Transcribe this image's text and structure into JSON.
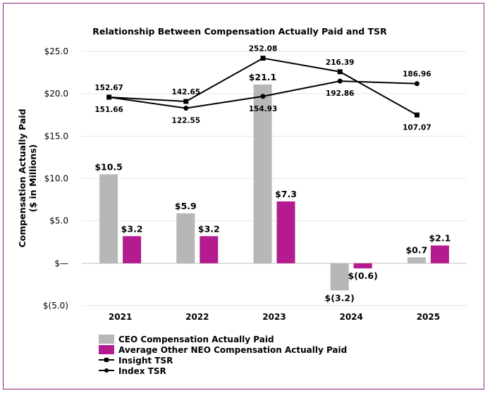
{
  "chart_data": {
    "type": "bar",
    "title": "Relationship Between Compensation Actually Paid and TSR",
    "ylabel_line1": "Compensation Actually Paid",
    "ylabel_line2": "($ in Millions)",
    "ylim": [
      -5,
      25
    ],
    "yticks": [
      {
        "value": 25,
        "label": "$25.0"
      },
      {
        "value": 20,
        "label": "$20.0"
      },
      {
        "value": 15,
        "label": "$15.0"
      },
      {
        "value": 10,
        "label": "$10.0"
      },
      {
        "value": 5,
        "label": "$5.0"
      },
      {
        "value": 0,
        "label": "$—"
      },
      {
        "value": -5,
        "label": "$(5.0)"
      }
    ],
    "categories": [
      "2021",
      "2022",
      "2023",
      "2024",
      "2025"
    ],
    "grid": true,
    "legend_position": "bottom-left",
    "bar_series": [
      {
        "name": "CEO Compensation Actually Paid",
        "color": "#b7b7b7",
        "values": [
          10.5,
          5.9,
          21.1,
          -3.2,
          0.7
        ],
        "labels": [
          "$10.5",
          "$5.9",
          "$21.1",
          "$(3.2)",
          "$0.7"
        ]
      },
      {
        "name": "Average Other NEO Compensation Actually Paid",
        "color": "#b31b8e",
        "values": [
          3.2,
          3.2,
          7.3,
          -0.6,
          2.1
        ],
        "labels": [
          "$3.2",
          "$3.2",
          "$7.3",
          "$(0.6)",
          "$2.1"
        ]
      }
    ],
    "line_series": [
      {
        "name": "Insight TSR",
        "marker": "square",
        "color": "#000000",
        "plot_values": [
          19.6,
          19.1,
          24.2,
          22.6,
          17.5
        ],
        "labels": [
          "152.67",
          "142.65",
          "252.08",
          "216.39",
          "107.07"
        ],
        "label_side": [
          "above",
          "above",
          "above",
          "above",
          "below"
        ]
      },
      {
        "name": "Index TSR",
        "marker": "circle",
        "color": "#000000",
        "plot_values": [
          19.6,
          18.3,
          19.7,
          21.5,
          21.2
        ],
        "labels": [
          "151.66",
          "122.55",
          "154.93",
          "192.86",
          "186.96"
        ],
        "label_side": [
          "below",
          "below",
          "below",
          "below",
          "above"
        ]
      }
    ]
  }
}
